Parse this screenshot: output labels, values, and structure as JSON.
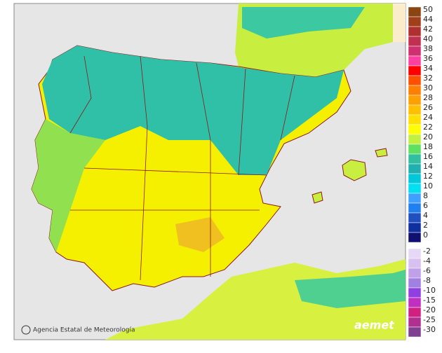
{
  "credit": "Agencia Estatal de Meteorología",
  "logo": "aemet",
  "legend": {
    "items": [
      {
        "value": 50,
        "color": "#8b4513"
      },
      {
        "value": 44,
        "color": "#a0401a"
      },
      {
        "value": 42,
        "color": "#b03030"
      },
      {
        "value": 40,
        "color": "#c03050"
      },
      {
        "value": 38,
        "color": "#d03070"
      },
      {
        "value": 36,
        "color": "#ff40a0"
      },
      {
        "value": 34,
        "color": "#ff0000"
      },
      {
        "value": 32,
        "color": "#ff5000"
      },
      {
        "value": 30,
        "color": "#ff8000"
      },
      {
        "value": 28,
        "color": "#ffa000"
      },
      {
        "value": 26,
        "color": "#ffc000"
      },
      {
        "value": 24,
        "color": "#ffe000"
      },
      {
        "value": 22,
        "color": "#ffff00"
      },
      {
        "value": 20,
        "color": "#c0f040"
      },
      {
        "value": 18,
        "color": "#60e060"
      },
      {
        "value": 16,
        "color": "#30c0a0"
      },
      {
        "value": 14,
        "color": "#20b0b0"
      },
      {
        "value": 12,
        "color": "#00c8d8"
      },
      {
        "value": 10,
        "color": "#00e0f0"
      },
      {
        "value": 8,
        "color": "#40a0ff"
      },
      {
        "value": 6,
        "color": "#2080f0"
      },
      {
        "value": 4,
        "color": "#2050c0"
      },
      {
        "value": 2,
        "color": "#1030a0"
      },
      {
        "value": 0,
        "color": "#101070"
      },
      {
        "value": -2,
        "color": "#e8d8f8"
      },
      {
        "value": -4,
        "color": "#d8c0f0"
      },
      {
        "value": -6,
        "color": "#c0a0e8"
      },
      {
        "value": -8,
        "color": "#a080e0"
      },
      {
        "value": -10,
        "color": "#9040e0"
      },
      {
        "value": -15,
        "color": "#c030c0"
      },
      {
        "value": -20,
        "color": "#d02080"
      },
      {
        "value": -25,
        "color": "#b03090"
      },
      {
        "value": -30,
        "color": "#804090"
      }
    ]
  }
}
